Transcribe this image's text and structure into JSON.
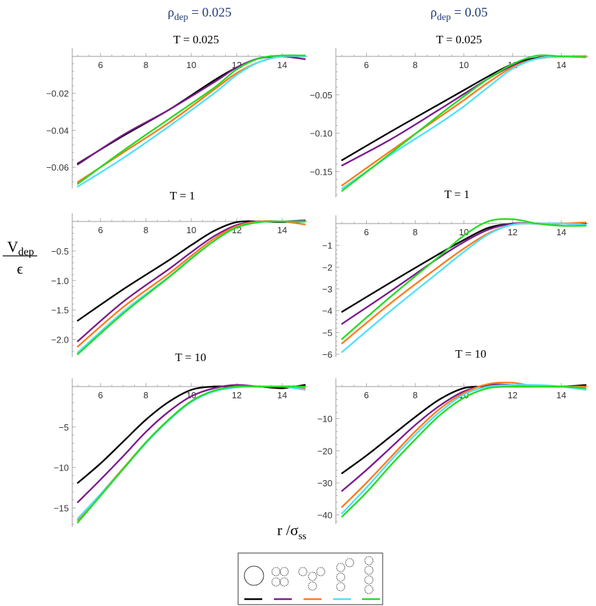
{
  "header": {
    "col1": {
      "base": "ρ",
      "sub": "dep",
      "rest": " = 0.025"
    },
    "col2": {
      "base": "ρ",
      "sub": "dep",
      "rest": " = 0.05"
    }
  },
  "ylabel": {
    "num_base": "V",
    "num_sub": "dep",
    "den": "ϵ"
  },
  "xlabel": {
    "base": "r /σ",
    "sub": "ss"
  },
  "colors": {
    "black": "#000000",
    "purple": "#7a1b8c",
    "orange": "#ff7a1a",
    "cyan": "#4ee0ff",
    "green": "#22dd22"
  },
  "legend": {
    "shapes": [
      "single-sphere-icon",
      "four-sphere-cluster-icon",
      "four-sphere-branched-icon",
      "four-sphere-zigzag-icon",
      "four-sphere-chain-icon"
    ],
    "colors": [
      "#000000",
      "#7a1b8c",
      "#ff7a1a",
      "#4ee0ff",
      "#22dd22"
    ]
  },
  "chart_data": [
    {
      "type": "line",
      "title": "T = 0.025",
      "column": "ρdep = 0.025",
      "xlim": [
        5,
        15
      ],
      "ylim": [
        -0.07,
        0.0
      ],
      "xticks": [
        6,
        8,
        10,
        12,
        14
      ],
      "yticks": [
        -0.06,
        -0.04,
        -0.02
      ],
      "ytick_labels": [
        "−0.06",
        "−0.04",
        "−0.02"
      ],
      "series": [
        {
          "color": "#000000",
          "x": [
            5,
            7,
            9,
            11,
            12,
            13,
            14,
            15
          ],
          "y": [
            -0.058,
            -0.043,
            -0.029,
            -0.013,
            -0.006,
            -0.001,
            0.0,
            0.0
          ]
        },
        {
          "color": "#7a1b8c",
          "x": [
            5,
            7,
            9,
            11,
            12,
            13,
            14,
            15
          ],
          "y": [
            -0.0585,
            -0.0425,
            -0.029,
            -0.014,
            -0.006,
            -0.001,
            0.0,
            -0.0015
          ]
        },
        {
          "color": "#ff7a1a",
          "x": [
            5,
            7,
            9,
            11,
            12,
            13,
            14,
            15
          ],
          "y": [
            -0.068,
            -0.052,
            -0.036,
            -0.018,
            -0.009,
            -0.003,
            0.0,
            0.0
          ]
        },
        {
          "color": "#4ee0ff",
          "x": [
            5,
            7,
            9,
            11,
            12,
            13,
            14,
            15
          ],
          "y": [
            -0.0705,
            -0.055,
            -0.038,
            -0.02,
            -0.01,
            -0.003,
            0.0,
            0.0
          ]
        },
        {
          "color": "#22dd22",
          "x": [
            5,
            7,
            9,
            11,
            12,
            13,
            14,
            15
          ],
          "y": [
            -0.069,
            -0.051,
            -0.034,
            -0.017,
            -0.007,
            -0.001,
            0.0005,
            0.0005
          ]
        }
      ]
    },
    {
      "type": "line",
      "title": "T = 0.025",
      "column": "ρdep = 0.05",
      "xlim": [
        5,
        15
      ],
      "ylim": [
        -0.18,
        0.0
      ],
      "xticks": [
        6,
        8,
        10,
        12,
        14
      ],
      "yticks": [
        -0.15,
        -0.1,
        -0.05
      ],
      "ytick_labels": [
        "−0.15",
        "−0.10",
        "−0.05"
      ],
      "series": [
        {
          "color": "#000000",
          "x": [
            5,
            7,
            9,
            10,
            11,
            12,
            13,
            14,
            15
          ],
          "y": [
            -0.135,
            -0.098,
            -0.062,
            -0.044,
            -0.026,
            -0.01,
            -0.002,
            0.0,
            0.0
          ]
        },
        {
          "color": "#7a1b8c",
          "x": [
            5,
            7,
            9,
            10,
            11,
            12,
            13,
            14,
            15
          ],
          "y": [
            -0.142,
            -0.108,
            -0.069,
            -0.049,
            -0.029,
            -0.012,
            -0.003,
            0.0,
            -0.001
          ]
        },
        {
          "color": "#ff7a1a",
          "x": [
            5,
            7,
            9,
            10,
            11,
            12,
            13,
            14,
            15
          ],
          "y": [
            -0.168,
            -0.123,
            -0.079,
            -0.057,
            -0.034,
            -0.014,
            -0.003,
            0.0,
            0.0
          ]
        },
        {
          "color": "#4ee0ff",
          "x": [
            5,
            7,
            9,
            10,
            11,
            12,
            13,
            14,
            15
          ],
          "y": [
            -0.172,
            -0.128,
            -0.087,
            -0.065,
            -0.04,
            -0.016,
            -0.003,
            0.0,
            -0.001
          ]
        },
        {
          "color": "#22dd22",
          "x": [
            5,
            7,
            9,
            10,
            11,
            12,
            13,
            14,
            15
          ],
          "y": [
            -0.175,
            -0.126,
            -0.076,
            -0.052,
            -0.029,
            -0.01,
            0.001,
            0.0,
            -0.001
          ]
        }
      ]
    },
    {
      "type": "line",
      "title": "T = 1",
      "column": "ρdep = 0.025",
      "xlim": [
        5,
        15
      ],
      "ylim": [
        -2.25,
        0.0
      ],
      "xticks": [
        6,
        8,
        10,
        12,
        14
      ],
      "yticks": [
        -2.0,
        -1.5,
        -1.0,
        -0.5
      ],
      "ytick_labels": [
        "−2.0",
        "−1.5",
        "−1.0",
        "−0.5"
      ],
      "series": [
        {
          "color": "#000000",
          "x": [
            5,
            7,
            9,
            10,
            11,
            12,
            13,
            14,
            15
          ],
          "y": [
            -1.68,
            -1.15,
            -0.66,
            -0.4,
            -0.16,
            -0.01,
            0.0,
            -0.01,
            0.0
          ]
        },
        {
          "color": "#7a1b8c",
          "x": [
            5,
            7,
            9,
            10,
            11,
            12,
            13,
            14,
            15
          ],
          "y": [
            -2.03,
            -1.36,
            -0.81,
            -0.52,
            -0.25,
            -0.06,
            0.0,
            0.0,
            0.02
          ]
        },
        {
          "color": "#ff7a1a",
          "x": [
            5,
            7,
            9,
            10,
            11,
            12,
            13,
            14,
            15
          ],
          "y": [
            -2.12,
            -1.45,
            -0.89,
            -0.58,
            -0.29,
            -0.08,
            0.0,
            0.0,
            -0.05
          ]
        },
        {
          "color": "#4ee0ff",
          "x": [
            5,
            7,
            9,
            10,
            11,
            12,
            13,
            14,
            15
          ],
          "y": [
            -2.22,
            -1.53,
            -0.94,
            -0.62,
            -0.33,
            -0.1,
            -0.01,
            0.0,
            0.0
          ]
        },
        {
          "color": "#22dd22",
          "x": [
            5,
            7,
            9,
            10,
            11,
            12,
            13,
            14,
            15
          ],
          "y": [
            -2.25,
            -1.56,
            -0.95,
            -0.63,
            -0.33,
            -0.1,
            -0.01,
            0.0,
            0.0
          ]
        }
      ]
    },
    {
      "type": "line",
      "title": "T = 1",
      "column": "ρdep = 0.05",
      "xlim": [
        5,
        15
      ],
      "ylim": [
        -6.0,
        0.0
      ],
      "xticks": [
        6,
        8,
        10,
        12,
        14
      ],
      "yticks": [
        -6,
        -5,
        -4,
        -3,
        -2,
        -1
      ],
      "ytick_labels": [
        "−6",
        "−5",
        "−4",
        "−3",
        "−2",
        "−1"
      ],
      "series": [
        {
          "color": "#000000",
          "x": [
            5,
            7,
            9,
            10,
            11,
            12,
            13,
            14,
            15
          ],
          "y": [
            -4.05,
            -2.7,
            -1.38,
            -0.75,
            -0.2,
            0.0,
            0.0,
            0.0,
            0.0
          ]
        },
        {
          "color": "#7a1b8c",
          "x": [
            5,
            7,
            9,
            10,
            11,
            12,
            13,
            14,
            15
          ],
          "y": [
            -4.6,
            -3.1,
            -1.55,
            -0.85,
            -0.28,
            0.0,
            0.0,
            0.0,
            -0.05
          ]
        },
        {
          "color": "#ff7a1a",
          "x": [
            5,
            7,
            9,
            10,
            11,
            12,
            13,
            14,
            15
          ],
          "y": [
            -5.5,
            -3.65,
            -1.95,
            -1.15,
            -0.45,
            -0.05,
            0.0,
            0.0,
            0.05
          ]
        },
        {
          "color": "#4ee0ff",
          "x": [
            5,
            7,
            9,
            10,
            11,
            12,
            13,
            14,
            15
          ],
          "y": [
            -5.9,
            -4.0,
            -2.2,
            -1.3,
            -0.5,
            -0.05,
            0.0,
            0.0,
            -0.05
          ]
        },
        {
          "color": "#22dd22",
          "x": [
            5,
            7,
            9,
            10,
            11,
            12,
            13,
            14,
            15
          ],
          "y": [
            -5.3,
            -3.35,
            -1.5,
            -0.55,
            0.1,
            0.2,
            0.0,
            -0.1,
            -0.1
          ]
        }
      ]
    },
    {
      "type": "line",
      "title": "T = 10",
      "column": "ρdep = 0.025",
      "xlim": [
        5,
        15
      ],
      "ylim": [
        -17.0,
        0.0
      ],
      "xticks": [
        6,
        8,
        10,
        12,
        14
      ],
      "yticks": [
        -15,
        -10,
        -5
      ],
      "ytick_labels": [
        "−15",
        "−10",
        "−5"
      ],
      "series": [
        {
          "color": "#000000",
          "x": [
            5,
            6,
            7,
            8,
            9,
            10,
            11,
            12,
            13,
            14,
            15
          ],
          "y": [
            -11.9,
            -9.5,
            -6.8,
            -4.1,
            -1.9,
            -0.4,
            0.0,
            0.0,
            0.0,
            -0.2,
            0.2
          ]
        },
        {
          "color": "#7a1b8c",
          "x": [
            5,
            6,
            7,
            8,
            9,
            10,
            11,
            12,
            13,
            14,
            15
          ],
          "y": [
            -14.3,
            -11.5,
            -8.6,
            -5.6,
            -3.1,
            -1.2,
            -0.2,
            0.2,
            0.0,
            0.0,
            0.0
          ]
        },
        {
          "color": "#ff7a1a",
          "x": [
            5,
            6,
            7,
            8,
            9,
            10,
            11,
            12,
            13,
            14,
            15
          ],
          "y": [
            -16.5,
            -13.3,
            -10.1,
            -6.9,
            -4.1,
            -1.8,
            -0.5,
            0.0,
            0.0,
            0.0,
            -0.2
          ]
        },
        {
          "color": "#4ee0ff",
          "x": [
            5,
            6,
            7,
            8,
            9,
            10,
            11,
            12,
            13,
            14,
            15
          ],
          "y": [
            -16.3,
            -13.3,
            -10.2,
            -7.0,
            -4.2,
            -1.9,
            -0.6,
            -0.1,
            0.0,
            0.0,
            -0.4
          ]
        },
        {
          "color": "#22dd22",
          "x": [
            5,
            6,
            7,
            8,
            9,
            10,
            11,
            12,
            13,
            14,
            15
          ],
          "y": [
            -16.8,
            -13.5,
            -10.2,
            -6.9,
            -4.1,
            -1.8,
            -0.5,
            0.0,
            0.0,
            0.0,
            0.0
          ]
        }
      ]
    },
    {
      "type": "line",
      "title": "T = 10",
      "column": "ρdep = 0.05",
      "xlim": [
        5,
        15
      ],
      "ylim": [
        -42.0,
        0.0
      ],
      "xticks": [
        6,
        8,
        10,
        12,
        14
      ],
      "yticks": [
        -40,
        -30,
        -20,
        -10
      ],
      "ytick_labels": [
        "−40",
        "−30",
        "−20",
        "−10"
      ],
      "series": [
        {
          "color": "#000000",
          "x": [
            5,
            6,
            7,
            8,
            9,
            10,
            11,
            12,
            13,
            14,
            15
          ],
          "y": [
            -27.0,
            -21.5,
            -15.5,
            -9.5,
            -4.0,
            -0.5,
            0.0,
            0.0,
            0.0,
            0.0,
            0.5
          ]
        },
        {
          "color": "#7a1b8c",
          "x": [
            5,
            6,
            7,
            8,
            9,
            10,
            11,
            12,
            13,
            14,
            15
          ],
          "y": [
            -32.5,
            -26.0,
            -19.0,
            -12.0,
            -6.0,
            -1.5,
            0.5,
            0.5,
            0.0,
            0.0,
            0.0
          ]
        },
        {
          "color": "#ff7a1a",
          "x": [
            5,
            6,
            7,
            8,
            9,
            10,
            11,
            12,
            13,
            14,
            15
          ],
          "y": [
            -37.5,
            -30.0,
            -22.0,
            -14.0,
            -7.0,
            -2.0,
            0.8,
            1.2,
            0.0,
            0.0,
            0.0
          ]
        },
        {
          "color": "#4ee0ff",
          "x": [
            5,
            6,
            7,
            8,
            9,
            10,
            11,
            12,
            13,
            14,
            15
          ],
          "y": [
            -39.5,
            -31.5,
            -23.0,
            -15.0,
            -8.0,
            -2.5,
            0.0,
            0.5,
            0.5,
            0.0,
            -1.0
          ]
        },
        {
          "color": "#22dd22",
          "x": [
            5,
            6,
            7,
            8,
            9,
            10,
            11,
            12,
            13,
            14,
            15
          ],
          "y": [
            -40.5,
            -33.0,
            -24.5,
            -16.5,
            -9.0,
            -3.5,
            -0.5,
            0.0,
            0.0,
            0.0,
            -0.5
          ]
        }
      ]
    }
  ]
}
